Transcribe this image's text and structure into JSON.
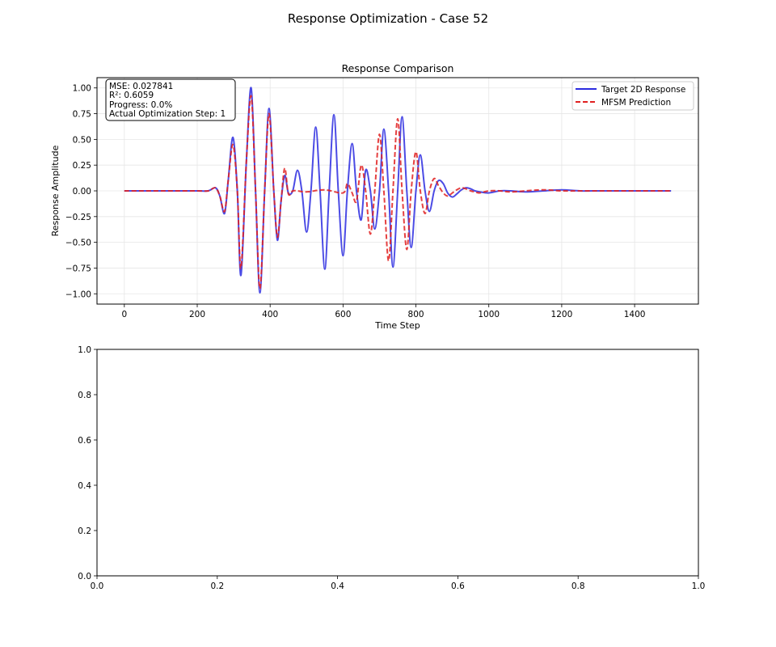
{
  "figure": {
    "suptitle": "Response Optimization - Case 52"
  },
  "chart_data": [
    {
      "type": "line",
      "title": "Response Comparison",
      "xlabel": "Time Step",
      "ylabel": "Response Amplitude",
      "xlim": [
        -75,
        1575
      ],
      "ylim": [
        -1.1,
        1.1
      ],
      "xticks": [
        0,
        200,
        400,
        600,
        800,
        1000,
        1200,
        1400
      ],
      "xtick_labels": [
        "0",
        "200",
        "400",
        "600",
        "800",
        "1000",
        "1200",
        "1400"
      ],
      "yticks": [
        -1.0,
        -0.75,
        -0.5,
        -0.25,
        0.0,
        0.25,
        0.5,
        0.75,
        1.0
      ],
      "ytick_labels": [
        "−1.00",
        "−0.75",
        "−0.50",
        "−0.25",
        "0.00",
        "0.25",
        "0.50",
        "0.75",
        "1.00"
      ],
      "grid": true,
      "legend_position": "top-right",
      "series": [
        {
          "name": "Target 2D Response",
          "color": "#2b2be0",
          "style": "solid",
          "x": [
            0,
            50,
            100,
            150,
            200,
            230,
            250,
            262,
            275,
            285,
            298,
            310,
            320,
            335,
            348,
            360,
            372,
            385,
            397,
            410,
            420,
            430,
            440,
            450,
            462,
            475,
            487,
            500,
            512,
            525,
            537,
            550,
            562,
            575,
            587,
            600,
            612,
            625,
            637,
            650,
            662,
            675,
            687,
            700,
            712,
            725,
            737,
            750,
            762,
            775,
            787,
            800,
            812,
            825,
            837,
            850,
            862,
            875,
            887,
            900,
            912,
            925,
            937,
            950,
            962,
            975,
            1000,
            1030,
            1060,
            1100,
            1150,
            1200,
            1250,
            1300,
            1350,
            1400,
            1450,
            1500
          ],
          "y": [
            0.0,
            0.0,
            0.0,
            0.0,
            0.0,
            0.0,
            0.03,
            -0.05,
            -0.22,
            0.1,
            0.52,
            0.0,
            -0.82,
            0.3,
            1.0,
            0.0,
            -0.99,
            0.0,
            0.8,
            0.0,
            -0.48,
            -0.1,
            0.15,
            -0.02,
            0.0,
            0.2,
            0.0,
            -0.4,
            0.0,
            0.62,
            0.0,
            -0.76,
            0.0,
            0.74,
            0.0,
            -0.63,
            0.0,
            0.46,
            0.0,
            -0.28,
            0.2,
            0.0,
            -0.37,
            0.0,
            0.6,
            0.0,
            -0.74,
            0.0,
            0.72,
            0.0,
            -0.55,
            0.0,
            0.35,
            0.0,
            -0.2,
            0.0,
            0.1,
            0.07,
            -0.02,
            -0.06,
            -0.03,
            0.01,
            0.03,
            0.02,
            0.0,
            -0.01,
            -0.02,
            0.0,
            0.0,
            -0.01,
            0.0,
            0.01,
            0.0,
            0.0,
            0.0,
            0.0,
            0.0,
            0.0
          ]
        },
        {
          "name": "MFSM Prediction",
          "color": "#e02020",
          "style": "dashed",
          "x": [
            0,
            50,
            100,
            150,
            200,
            230,
            250,
            262,
            275,
            285,
            298,
            310,
            320,
            335,
            348,
            360,
            372,
            385,
            397,
            410,
            420,
            430,
            440,
            450,
            462,
            475,
            500,
            550,
            600,
            612,
            625,
            637,
            650,
            662,
            675,
            687,
            700,
            712,
            725,
            737,
            750,
            762,
            775,
            787,
            800,
            812,
            825,
            837,
            850,
            862,
            875,
            887,
            900,
            912,
            925,
            937,
            950,
            962,
            975,
            1000,
            1030,
            1060,
            1100,
            1150,
            1200,
            1250,
            1300,
            1350,
            1400,
            1450,
            1500
          ],
          "y": [
            0.0,
            0.0,
            0.0,
            0.0,
            0.0,
            0.0,
            0.03,
            -0.05,
            -0.2,
            0.1,
            0.45,
            0.0,
            -0.75,
            0.3,
            0.92,
            0.0,
            -0.95,
            0.0,
            0.75,
            0.0,
            -0.45,
            -0.1,
            0.22,
            -0.03,
            0.0,
            0.0,
            -0.01,
            0.01,
            -0.02,
            0.07,
            -0.02,
            -0.1,
            0.25,
            0.0,
            -0.42,
            0.0,
            0.55,
            0.0,
            -0.68,
            0.0,
            0.7,
            0.0,
            -0.57,
            0.0,
            0.38,
            0.0,
            -0.22,
            0.0,
            0.12,
            0.05,
            -0.02,
            -0.05,
            -0.02,
            0.01,
            0.03,
            0.02,
            0.0,
            -0.01,
            -0.02,
            0.0,
            0.0,
            -0.01,
            0.0,
            0.01,
            0.0,
            0.0,
            0.0,
            0.0,
            0.0,
            0.0,
            0.0
          ]
        }
      ],
      "annotation": {
        "mse": "MSE: 0.027841",
        "r2": "R²: 0.6059",
        "progress": "Progress: 0.0%",
        "step": "Actual Optimization Step: 1"
      }
    },
    {
      "type": "line",
      "title": "",
      "xlabel": "",
      "ylabel": "",
      "xlim": [
        0,
        1
      ],
      "ylim": [
        0,
        1
      ],
      "xticks": [
        0.0,
        0.2,
        0.4,
        0.6,
        0.8,
        1.0
      ],
      "xtick_labels": [
        "0.0",
        "0.2",
        "0.4",
        "0.6",
        "0.8",
        "1.0"
      ],
      "yticks": [
        0.0,
        0.2,
        0.4,
        0.6,
        0.8,
        1.0
      ],
      "ytick_labels": [
        "0.0",
        "0.2",
        "0.4",
        "0.6",
        "0.8",
        "1.0"
      ],
      "grid": false,
      "series": []
    }
  ]
}
